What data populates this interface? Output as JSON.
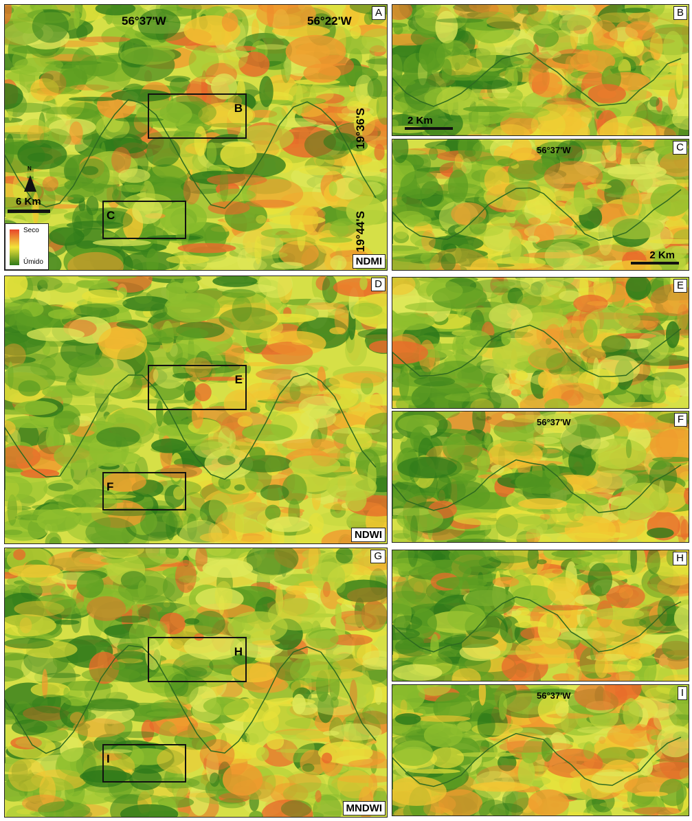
{
  "panels": [
    {
      "letter": "A",
      "index": "NDMI",
      "boxes": [
        "B",
        "C"
      ]
    },
    {
      "letter": "D",
      "index": "NDWI",
      "boxes": [
        "E",
        "F"
      ]
    },
    {
      "letter": "G",
      "index": "MNDWI",
      "boxes": [
        "H",
        "I"
      ]
    }
  ],
  "coords": {
    "lon": [
      "56°37'W",
      "56°22'W"
    ],
    "lat": [
      "19°36'S",
      "19°44'S"
    ]
  },
  "north": "N",
  "scale": "6 Km",
  "legend": {
    "high": "Seco",
    "low": "Úmido"
  },
  "zooms": [
    {
      "letter": "B",
      "scale": "2 Km"
    },
    {
      "letter": "C",
      "lon": "56°37'W",
      "scale": "2 Km"
    },
    {
      "letter": "E"
    },
    {
      "letter": "F",
      "lon": "56°37'W"
    },
    {
      "letter": "H"
    },
    {
      "letter": "I",
      "lon": "56°37'W"
    }
  ]
}
